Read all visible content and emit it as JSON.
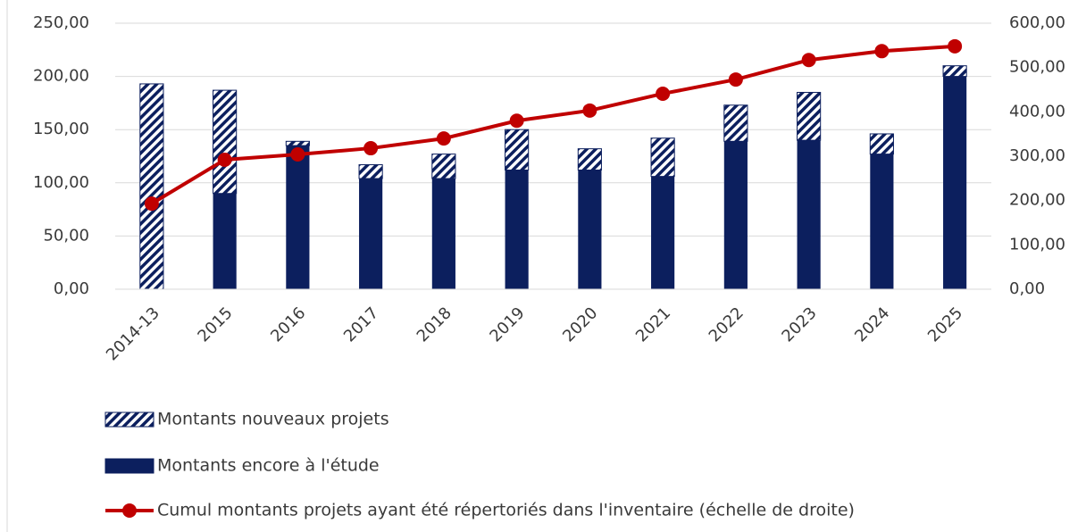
{
  "chart_data": {
    "type": "bar-line",
    "categories": [
      "2014-13",
      "2015",
      "2016",
      "2017",
      "2018",
      "2019",
      "2020",
      "2021",
      "2022",
      "2023",
      "2024",
      "2025"
    ],
    "series": [
      {
        "name": "Montants nouveaux projets",
        "color": "#0c1f5e",
        "hatch": true,
        "stack": "top",
        "values": [
          193,
          97,
          4,
          13,
          23,
          38,
          20,
          36,
          34,
          45,
          19,
          10
        ]
      },
      {
        "name": "Montants encore à l'étude",
        "color": "#0c1f5e",
        "stack": "bottom",
        "values": [
          0,
          90,
          135,
          104,
          104,
          112,
          112,
          106,
          139,
          140,
          127,
          200
        ]
      },
      {
        "name": "Cumul montants  projets ayant été répertoriés dans l'inventaire (échelle de droite)",
        "color": "#c00000",
        "axis": "y2",
        "values": [
          193,
          292,
          304,
          318,
          340,
          380,
          403,
          441,
          473,
          517,
          537,
          548
        ]
      }
    ],
    "ylim": [
      0,
      250
    ],
    "yticks": [
      {
        "value": 0,
        "label": "0,00"
      },
      {
        "value": 50,
        "label": "50,00"
      },
      {
        "value": 100,
        "label": "100,00"
      },
      {
        "value": 150,
        "label": "150,00"
      },
      {
        "value": 200,
        "label": "200,00"
      },
      {
        "value": 250,
        "label": "250,00"
      }
    ],
    "y2lim": [
      0,
      600
    ],
    "y2ticks": [
      {
        "value": 0,
        "label": "0,00"
      },
      {
        "value": 100,
        "label": "100,00"
      },
      {
        "value": 200,
        "label": "200,00"
      },
      {
        "value": 300,
        "label": "300,00"
      },
      {
        "value": 400,
        "label": "400,00"
      },
      {
        "value": 500,
        "label": "500,00"
      },
      {
        "value": 600,
        "label": "600,00"
      }
    ],
    "grid": true,
    "legend": "bottom"
  }
}
